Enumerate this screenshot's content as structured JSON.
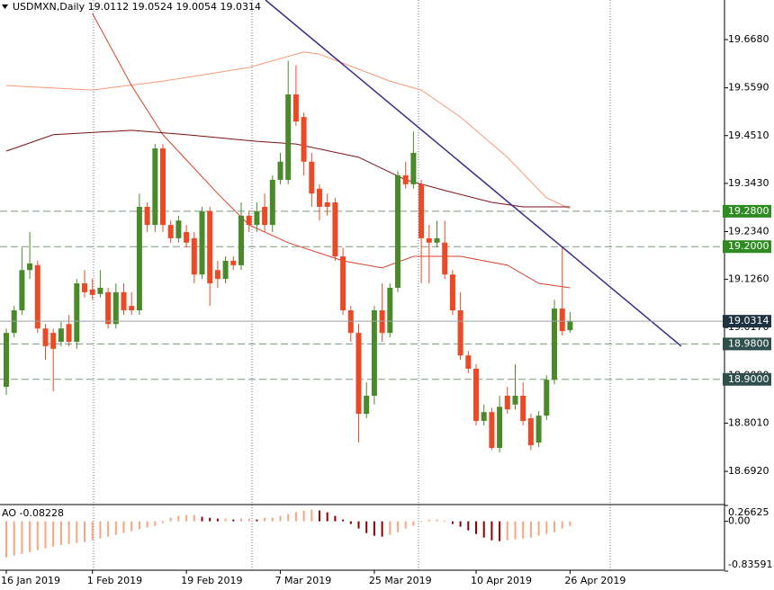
{
  "chart_data": {
    "type": "candlestick",
    "title": "USDMXN,Daily  19.0112 19.0524 19.0054 19.0314",
    "colors": {
      "up": "#4a8a2a",
      "down": "#ec4a26"
    },
    "candles": [
      [
        18.883,
        19.015,
        18.865,
        19.005
      ],
      [
        19.005,
        19.066,
        18.995,
        19.056
      ],
      [
        19.056,
        19.198,
        19.046,
        19.147
      ],
      [
        19.147,
        19.233,
        19.127,
        19.162
      ],
      [
        19.158,
        19.168,
        19.005,
        19.015
      ],
      [
        19.015,
        19.025,
        18.944,
        18.975
      ],
      [
        19.005,
        19.015,
        18.873,
        18.969
      ],
      [
        18.985,
        19.03,
        18.975,
        19.015
      ],
      [
        19.025,
        19.046,
        18.975,
        18.985
      ],
      [
        18.985,
        19.127,
        18.969,
        19.117
      ],
      [
        19.117,
        19.147,
        19.085,
        19.097
      ],
      [
        19.103,
        19.127,
        19.08,
        19.091
      ],
      [
        19.093,
        19.147,
        19.085,
        19.107
      ],
      [
        19.097,
        19.107,
        19.015,
        19.025
      ],
      [
        19.025,
        19.117,
        19.015,
        19.097
      ],
      [
        19.097,
        19.117,
        19.046,
        19.056
      ],
      [
        19.066,
        19.097,
        19.046,
        19.056
      ],
      [
        19.056,
        19.32,
        19.046,
        19.29
      ],
      [
        19.29,
        19.3,
        19.233,
        19.249
      ],
      [
        19.249,
        19.432,
        19.233,
        19.422
      ],
      [
        19.422,
        19.432,
        19.233,
        19.249
      ],
      [
        19.249,
        19.259,
        19.209,
        19.219
      ],
      [
        19.219,
        19.27,
        19.209,
        19.259
      ],
      [
        19.233,
        19.249,
        19.198,
        19.209
      ],
      [
        19.219,
        19.233,
        19.117,
        19.137
      ],
      [
        19.137,
        19.29,
        19.127,
        19.28
      ],
      [
        19.28,
        19.29,
        19.066,
        19.117
      ],
      [
        19.147,
        19.168,
        19.107,
        19.127
      ],
      [
        19.127,
        19.178,
        19.117,
        19.168
      ],
      [
        19.168,
        19.178,
        19.147,
        19.158
      ],
      [
        19.158,
        19.3,
        19.147,
        19.27
      ],
      [
        19.27,
        19.28,
        19.233,
        19.249
      ],
      [
        19.249,
        19.3,
        19.233,
        19.28
      ],
      [
        19.29,
        19.32,
        19.233,
        19.249
      ],
      [
        19.249,
        19.361,
        19.233,
        19.351
      ],
      [
        19.351,
        19.412,
        19.341,
        19.392
      ],
      [
        19.351,
        19.62,
        19.341,
        19.544
      ],
      [
        19.544,
        19.61,
        19.473,
        19.483
      ],
      [
        19.493,
        19.503,
        19.361,
        19.392
      ],
      [
        19.392,
        19.412,
        19.29,
        19.32
      ],
      [
        19.331,
        19.341,
        19.259,
        19.29
      ],
      [
        19.3,
        19.32,
        19.27,
        19.29
      ],
      [
        19.3,
        19.31,
        19.168,
        19.178
      ],
      [
        19.178,
        19.198,
        19.046,
        19.056
      ],
      [
        19.056,
        19.066,
        18.985,
        19.005
      ],
      [
        19.005,
        19.025,
        18.757,
        18.822
      ],
      [
        18.822,
        18.893,
        18.812,
        18.863
      ],
      [
        18.863,
        19.066,
        18.843,
        19.056
      ],
      [
        19.056,
        19.117,
        18.985,
        19.005
      ],
      [
        19.005,
        19.117,
        18.995,
        19.107
      ],
      [
        19.107,
        19.371,
        19.097,
        19.361
      ],
      [
        19.361,
        19.392,
        19.331,
        19.341
      ],
      [
        19.341,
        19.46,
        19.331,
        19.412
      ],
      [
        19.341,
        19.351,
        19.117,
        19.219
      ],
      [
        19.219,
        19.249,
        19.117,
        19.209
      ],
      [
        19.209,
        19.259,
        19.198,
        19.219
      ],
      [
        19.209,
        19.259,
        19.127,
        19.137
      ],
      [
        19.137,
        19.147,
        19.046,
        19.056
      ],
      [
        19.056,
        19.097,
        18.944,
        18.954
      ],
      [
        18.954,
        18.964,
        18.914,
        18.924
      ],
      [
        18.924,
        18.934,
        18.796,
        18.806
      ],
      [
        18.806,
        18.843,
        18.796,
        18.826
      ],
      [
        18.826,
        18.836,
        18.74,
        18.745
      ],
      [
        18.745,
        18.863,
        18.735,
        18.838
      ],
      [
        18.863,
        18.883,
        18.822,
        18.832
      ],
      [
        18.843,
        18.934,
        18.832,
        18.863
      ],
      [
        18.863,
        18.893,
        18.796,
        18.806
      ],
      [
        18.812,
        18.822,
        18.74,
        18.751
      ],
      [
        18.757,
        18.828,
        18.747,
        18.818
      ],
      [
        18.818,
        18.909,
        18.808,
        18.899
      ],
      [
        18.899,
        19.08,
        18.889,
        19.06
      ],
      [
        19.06,
        19.198,
        18.999,
        19.009
      ],
      [
        19.0112,
        19.0524,
        19.0054,
        19.0314
      ]
    ],
    "ylim": [
      18.619,
      19.7575
    ],
    "yticks": [
      {
        "value": 19.668,
        "label": "19.6680"
      },
      {
        "value": 19.559,
        "label": "19.5590"
      },
      {
        "value": 19.451,
        "label": "19.4510"
      },
      {
        "value": 19.343,
        "label": "19.3430"
      },
      {
        "value": 19.234,
        "label": "19.2340"
      },
      {
        "value": 19.126,
        "label": "19.1260"
      },
      {
        "value": 19.017,
        "label": "19.0170"
      },
      {
        "value": 18.909,
        "label": "18.9090"
      },
      {
        "value": 18.801,
        "label": "18.8010"
      },
      {
        "value": 18.692,
        "label": "18.6920"
      }
    ],
    "xticks": [
      {
        "value": 0,
        "label": "16 Jan 2019"
      },
      {
        "value": 11,
        "label": "1 Feb 2019"
      },
      {
        "value": 23,
        "label": "19 Feb 2019"
      },
      {
        "value": 35,
        "label": "7 Mar 2019"
      },
      {
        "value": 47,
        "label": "25 Mar 2019"
      },
      {
        "value": 60,
        "label": "10 Apr 2019"
      },
      {
        "value": 72,
        "label": "26 Apr 2019"
      }
    ],
    "moving_averages": [
      {
        "color": "#f59a78",
        "x": [
          0,
          11,
          20,
          31,
          38,
          40,
          49,
          53,
          58,
          64,
          69,
          72
        ],
        "values": [
          19.564,
          19.554,
          19.574,
          19.605,
          19.64,
          19.635,
          19.574,
          19.554,
          19.493,
          19.402,
          19.31,
          19.286
        ]
      },
      {
        "color": "#d8402c",
        "x": [
          11,
          16,
          20,
          27,
          31,
          36,
          43,
          48,
          52,
          58,
          64,
          68,
          72
        ],
        "values": [
          19.727,
          19.564,
          19.453,
          19.32,
          19.249,
          19.209,
          19.168,
          19.152,
          19.178,
          19.178,
          19.158,
          19.117,
          19.107
        ]
      },
      {
        "color": "#7a1010",
        "x": [
          0,
          6,
          16,
          23,
          32,
          37,
          45,
          51,
          56,
          62,
          66,
          72
        ],
        "values": [
          19.416,
          19.453,
          19.463,
          19.453,
          19.438,
          19.432,
          19.402,
          19.351,
          19.327,
          19.3,
          19.29,
          19.29
        ]
      }
    ],
    "trendline": {
      "color": "#3a2a8a",
      "x": [
        33.1,
        86.2
      ],
      "values": [
        19.7575,
        18.975
      ]
    },
    "levels": [
      {
        "value": 19.28,
        "label": "19.2800",
        "color": "#2e8b22"
      },
      {
        "value": 19.2,
        "label": "19.2000",
        "color": "#2e8b22"
      },
      {
        "value": 18.98,
        "label": "18.9800",
        "color": "#2f4f4f"
      },
      {
        "value": 18.9,
        "label": "18.9000",
        "color": "#2f4f4f"
      }
    ],
    "indicator": {
      "type": "bar",
      "title": "AO -0.08228",
      "colors": {
        "up": "#f7a582",
        "down": "#8b0000"
      },
      "ylim": [
        -0.83591,
        0.26625
      ],
      "yticks": [
        0.26625,
        {
          "value": 0,
          "label": "0.00"
        },
        -0.83591
      ],
      "values": [
        -0.606,
        -0.576,
        -0.545,
        -0.515,
        -0.485,
        -0.455,
        -0.424,
        -0.394,
        -0.379,
        -0.364,
        -0.348,
        -0.318,
        -0.288,
        -0.258,
        -0.227,
        -0.197,
        -0.167,
        -0.136,
        -0.106,
        -0.076,
        -0.03,
        0.061,
        0.091,
        0.106,
        0.106,
        0.076,
        0.061,
        0.045,
        0.045,
        0.03,
        0.045,
        0.045,
        0.03,
        0.061,
        0.061,
        0.091,
        0.121,
        0.152,
        0.182,
        0.197,
        0.182,
        0.152,
        0.091,
        0.03,
        -0.045,
        -0.121,
        -0.197,
        -0.242,
        -0.258,
        -0.227,
        -0.182,
        -0.121,
        -0.076,
        -0.015,
        0.03,
        0.03,
        -0.005,
        -0.045,
        -0.091,
        -0.152,
        -0.212,
        -0.273,
        -0.318,
        -0.333,
        -0.318,
        -0.303,
        -0.288,
        -0.273,
        -0.242,
        -0.212,
        -0.182,
        -0.121,
        -0.08228
      ]
    }
  }
}
